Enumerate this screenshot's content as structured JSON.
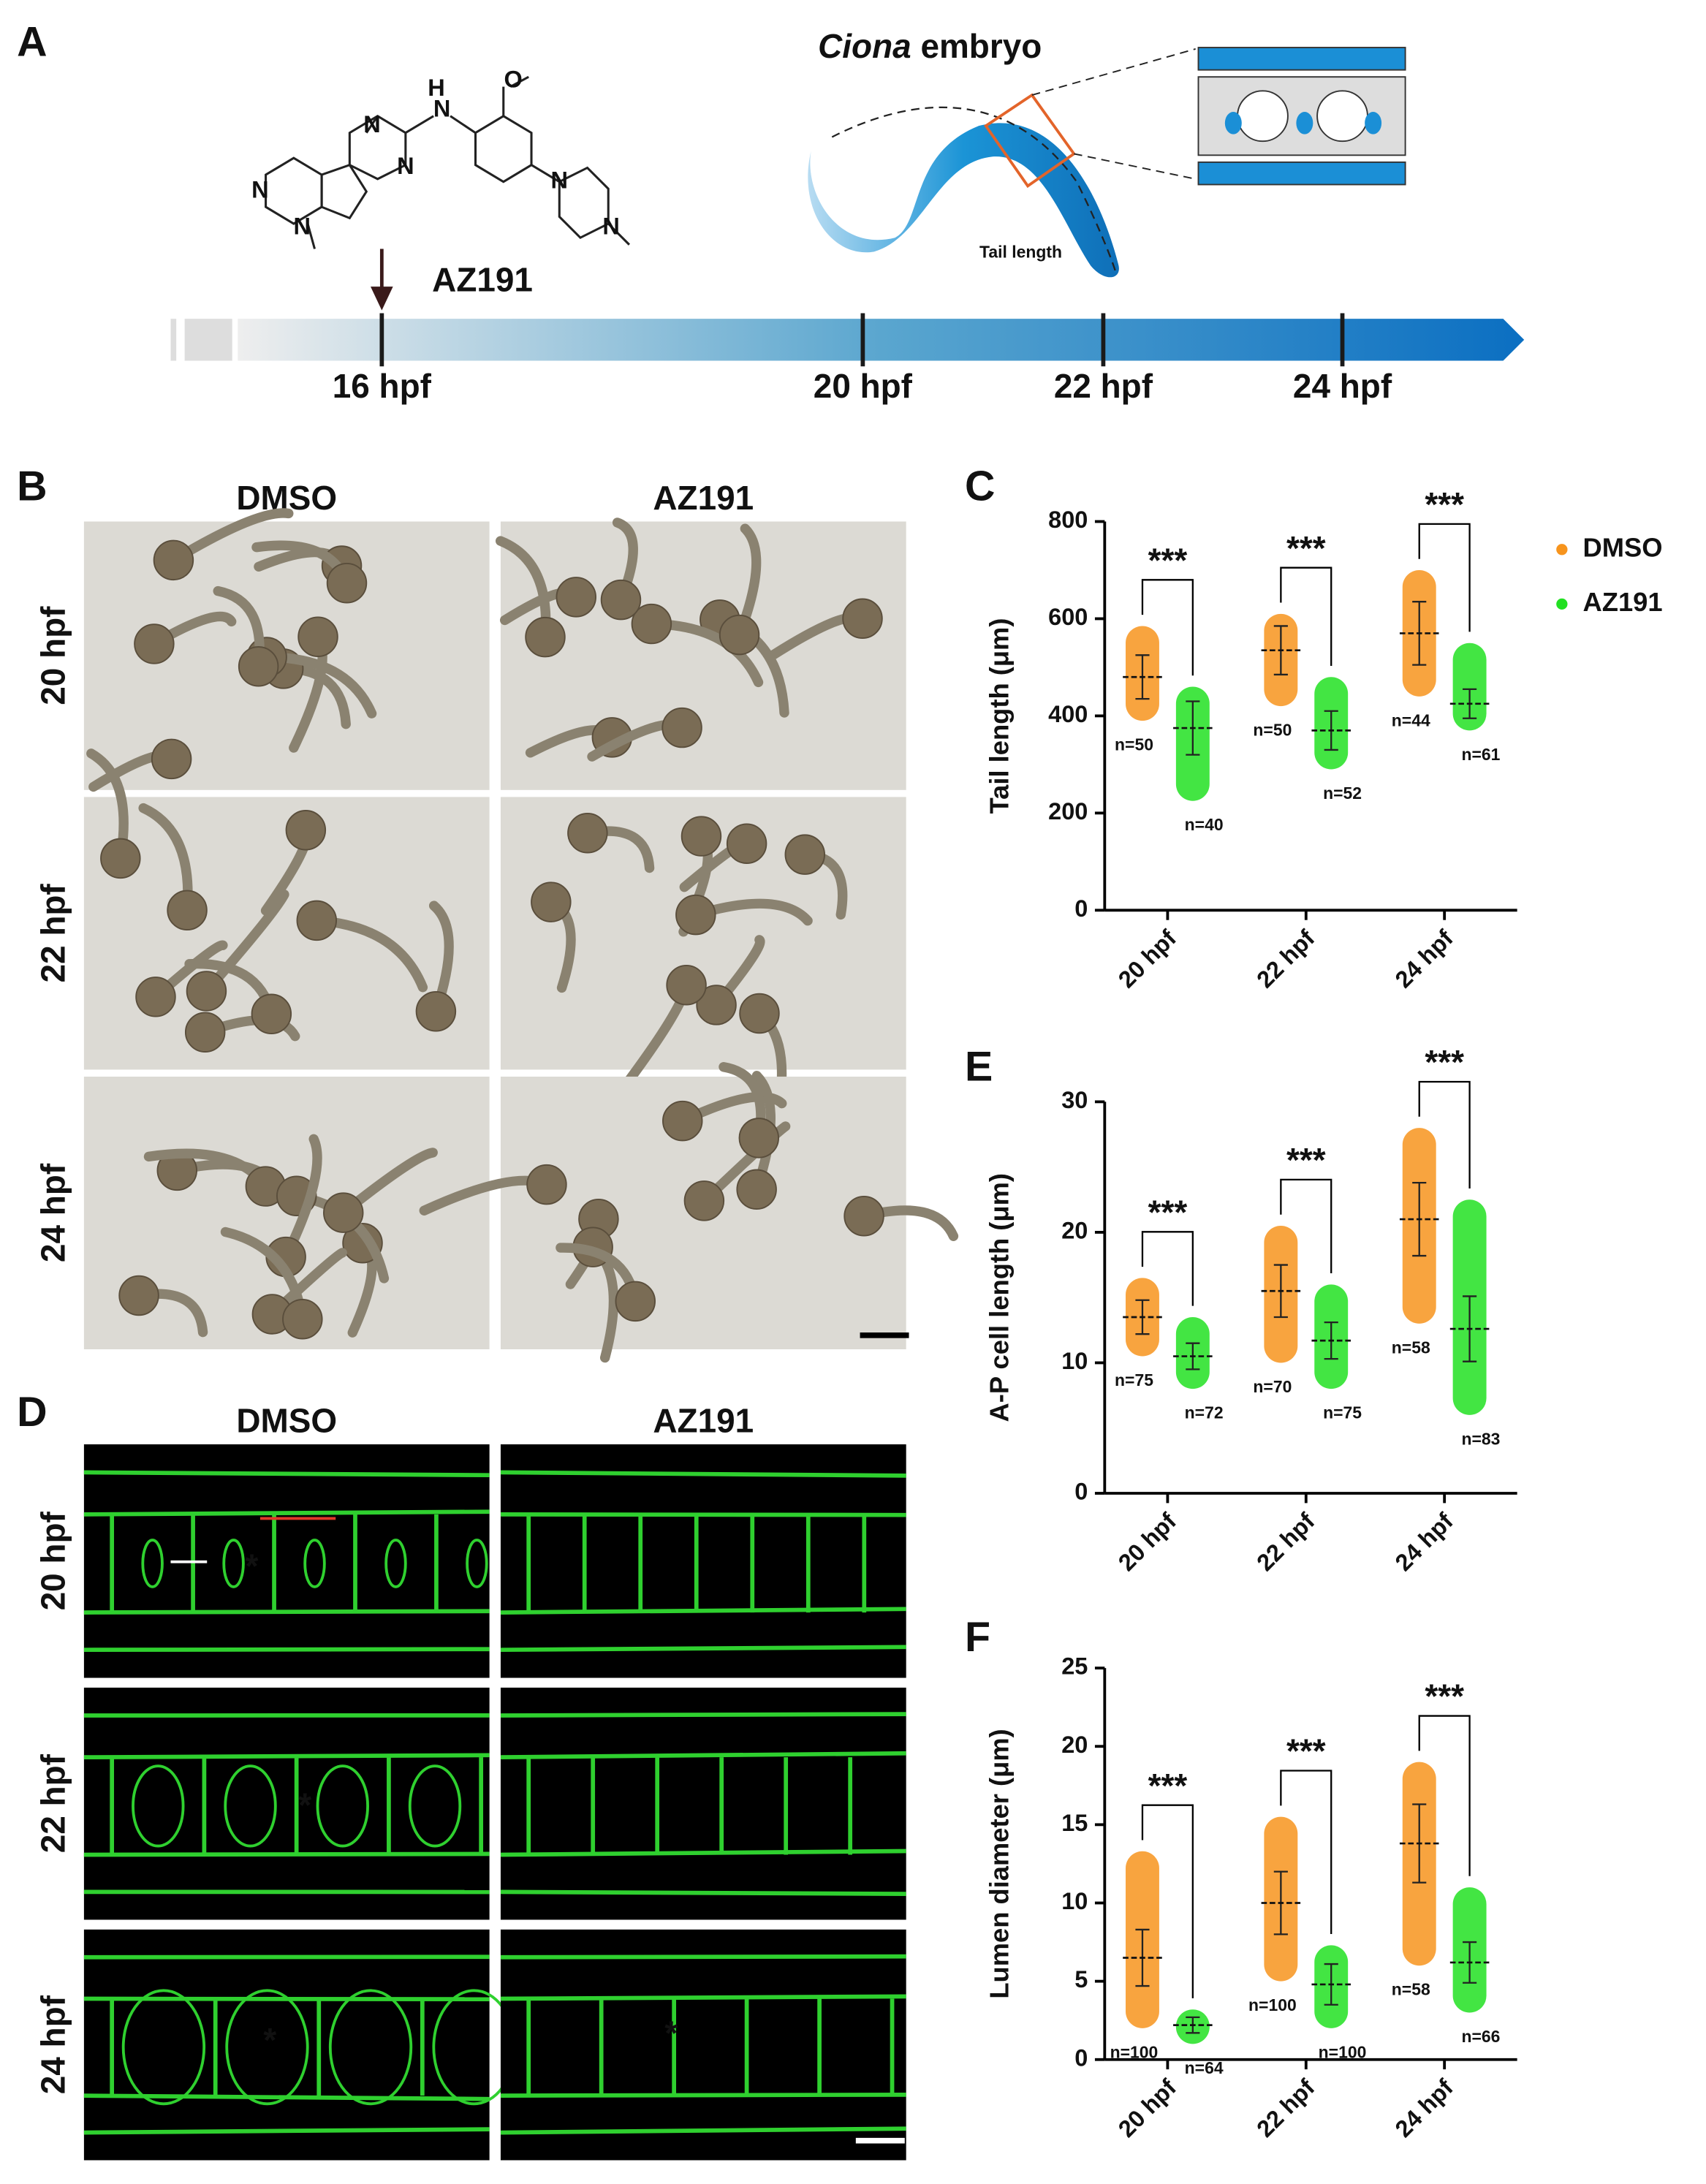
{
  "panels": {
    "A": {
      "letter": "A",
      "compound": "AZ191",
      "atoms": [
        "N",
        "N",
        "N",
        "H",
        "N",
        "O",
        "N",
        "N",
        "N"
      ],
      "embryo_title_italic": "Ciona",
      "embryo_title": "embryo",
      "tail_label": "Tail length",
      "timeline": [
        "16 hpf",
        "20 hpf",
        "22 hpf",
        "24 hpf"
      ]
    },
    "B": {
      "letter": "B",
      "columns": [
        "DMSO",
        "AZ191"
      ],
      "rows": [
        "20 hpf",
        "22 hpf",
        "24 hpf"
      ]
    },
    "D": {
      "letter": "D",
      "columns": [
        "DMSO",
        "AZ191"
      ],
      "rows": [
        "20 hpf",
        "22 hpf",
        "24 hpf"
      ],
      "asterisks": [
        "*",
        "*",
        "*",
        "*"
      ]
    }
  },
  "chart_data": [
    {
      "letter": "C",
      "type": "dot-plot",
      "y_label": "Tail length (μm)",
      "categories": [
        "20 hpf",
        "22 hpf",
        "24 hpf"
      ],
      "ylim": [
        0,
        800
      ],
      "yticks": [
        0,
        200,
        400,
        600,
        800
      ],
      "legend": true,
      "significance": [
        "***",
        "***",
        "***"
      ],
      "series": [
        {
          "name": "DMSO",
          "color": "#f7941d",
          "values": [
            480,
            535,
            570
          ],
          "sd": [
            45,
            50,
            65
          ],
          "min": [
            390,
            420,
            440
          ],
          "max": [
            585,
            610,
            700
          ],
          "n_labels": [
            "n=50",
            "n=50",
            "n=44"
          ]
        },
        {
          "name": "AZ191",
          "color": "#22e022",
          "values": [
            375,
            370,
            425
          ],
          "sd": [
            55,
            40,
            30
          ],
          "min": [
            225,
            290,
            370
          ],
          "max": [
            460,
            480,
            550
          ],
          "n_labels": [
            "n=40",
            "n=52",
            "n=61"
          ]
        }
      ]
    },
    {
      "letter": "E",
      "type": "dot-plot",
      "y_label": "A-P cell length (μm)",
      "categories": [
        "20 hpf",
        "22 hpf",
        "24 hpf"
      ],
      "ylim": [
        0,
        30
      ],
      "yticks": [
        0,
        10,
        20,
        30
      ],
      "legend": false,
      "significance": [
        "***",
        "***",
        "***"
      ],
      "series": [
        {
          "name": "DMSO",
          "color": "#f7941d",
          "values": [
            13.5,
            15.5,
            21
          ],
          "sd": [
            1.3,
            2,
            2.8
          ],
          "min": [
            10.5,
            10,
            13
          ],
          "max": [
            16.5,
            20.5,
            28
          ],
          "n_labels": [
            "n=75",
            "n=70",
            "n=58"
          ]
        },
        {
          "name": "AZ191",
          "color": "#22e022",
          "values": [
            10.5,
            11.7,
            12.6
          ],
          "sd": [
            1,
            1.4,
            2.5
          ],
          "min": [
            8,
            8,
            6
          ],
          "max": [
            13.5,
            16,
            22.5
          ],
          "n_labels": [
            "n=72",
            "n=75",
            "n=83"
          ]
        }
      ]
    },
    {
      "letter": "F",
      "type": "dot-plot",
      "y_label": "Lumen diameter (μm)",
      "categories": [
        "20 hpf",
        "22 hpf",
        "24 hpf"
      ],
      "ylim": [
        0,
        25
      ],
      "yticks": [
        0,
        5,
        10,
        15,
        20,
        25
      ],
      "legend": false,
      "significance": [
        "***",
        "***",
        "***"
      ],
      "series": [
        {
          "name": "DMSO",
          "color": "#f7941d",
          "values": [
            6.5,
            10,
            13.8
          ],
          "sd": [
            1.8,
            2,
            2.5
          ],
          "min": [
            2,
            5,
            6
          ],
          "max": [
            13.3,
            15.5,
            19
          ],
          "n_labels": [
            "n=100",
            "n=100",
            "n=58"
          ]
        },
        {
          "name": "AZ191",
          "color": "#22e022",
          "values": [
            2.2,
            4.8,
            6.2
          ],
          "sd": [
            0.5,
            1.3,
            1.3
          ],
          "min": [
            1,
            2,
            3
          ],
          "max": [
            3.2,
            7.3,
            11
          ],
          "n_labels": [
            "n=64",
            "n=100",
            "n=66"
          ]
        }
      ]
    }
  ]
}
